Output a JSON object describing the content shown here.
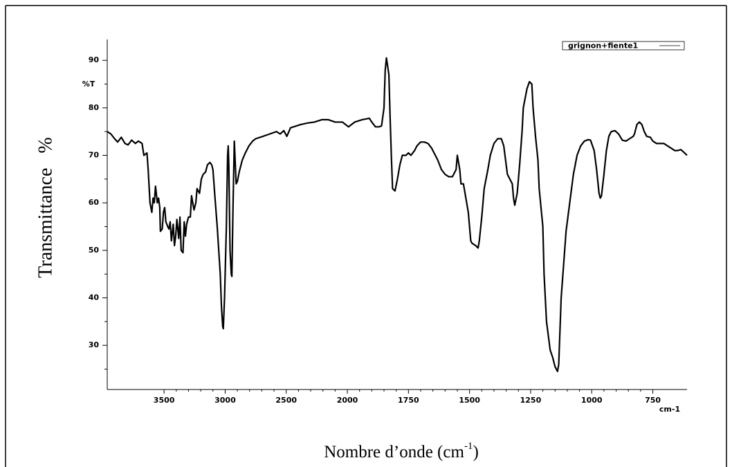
{
  "chart_data": {
    "type": "line",
    "y_label": "Transmittance   %",
    "x_label": "Nombre d’onde (cm",
    "x_label_superscript": "-1",
    "x_label_end": ")",
    "y_unit": "%T",
    "x_unit": "cm-1",
    "xlim": [
      3965,
      610
    ],
    "x_scale_change": {
      "at": 2000,
      "factor": 2
    },
    "xticks": [
      3500,
      3000,
      2500,
      2000,
      1750,
      1500,
      1250,
      1000,
      750
    ],
    "ylim": [
      20.7,
      94.4
    ],
    "yticks": [
      30,
      40,
      50,
      60,
      70,
      80,
      90
    ],
    "legend": "top-right",
    "grid": false,
    "series": [
      {
        "name": "grignon+fiente1",
        "color": "#000000",
        "x": [
          3965,
          3935,
          3905,
          3880,
          3850,
          3820,
          3795,
          3765,
          3735,
          3710,
          3680,
          3665,
          3640,
          3630,
          3615,
          3600,
          3590,
          3580,
          3570,
          3555,
          3545,
          3535,
          3530,
          3515,
          3505,
          3495,
          3485,
          3470,
          3460,
          3450,
          3440,
          3425,
          3415,
          3405,
          3395,
          3380,
          3370,
          3360,
          3345,
          3335,
          3325,
          3315,
          3300,
          3285,
          3275,
          3255,
          3240,
          3230,
          3210,
          3195,
          3180,
          3160,
          3145,
          3125,
          3110,
          3100,
          3080,
          3065,
          3040,
          3030,
          3020,
          3015,
          3005,
          2990,
          2980,
          2975,
          2970,
          2960,
          2950,
          2945,
          2935,
          2925,
          2910,
          2900,
          2885,
          2860,
          2835,
          2805,
          2775,
          2750,
          2690,
          2635,
          2580,
          2550,
          2520,
          2495,
          2465,
          2440,
          2380,
          2325,
          2270,
          2210,
          2155,
          2100,
          2040,
          1995,
          1970,
          1940,
          1910,
          1900,
          1885,
          1870,
          1860,
          1850,
          1845,
          1840,
          1830,
          1825,
          1820,
          1815,
          1805,
          1795,
          1785,
          1775,
          1760,
          1750,
          1740,
          1725,
          1715,
          1700,
          1685,
          1670,
          1655,
          1640,
          1630,
          1615,
          1600,
          1585,
          1570,
          1555,
          1550,
          1540,
          1535,
          1525,
          1515,
          1505,
          1495,
          1490,
          1475,
          1465,
          1460,
          1450,
          1440,
          1425,
          1415,
          1400,
          1385,
          1370,
          1360,
          1350,
          1345,
          1335,
          1325,
          1320,
          1315,
          1305,
          1295,
          1285,
          1280,
          1265,
          1255,
          1245,
          1240,
          1230,
          1220,
          1215,
          1200,
          1195,
          1185,
          1175,
          1170,
          1160,
          1155,
          1150,
          1140,
          1135,
          1130,
          1125,
          1115,
          1105,
          1090,
          1075,
          1060,
          1045,
          1030,
          1015,
          1005,
          990,
          980,
          970,
          965,
          960,
          950,
          940,
          930,
          920,
          905,
          890,
          875,
          860,
          845,
          830,
          825,
          815,
          805,
          795,
          785,
          775,
          760,
          750,
          735,
          720,
          705,
          690,
          675,
          660,
          650,
          635,
          620,
          610
        ],
        "values": [
          75,
          74.5,
          73.5,
          72.8,
          73.8,
          72.5,
          72.2,
          73.2,
          72.5,
          73,
          72.5,
          70,
          70.5,
          67,
          60,
          58,
          61,
          60,
          63.5,
          60,
          61,
          59,
          54,
          54.5,
          58,
          59,
          56,
          55,
          54.5,
          56,
          52,
          55.5,
          51,
          53,
          56.5,
          52.5,
          57,
          50,
          49.5,
          56,
          53,
          55.5,
          57,
          57,
          61.5,
          58.5,
          60,
          63,
          62,
          65,
          66,
          66.5,
          68,
          68.5,
          68,
          67,
          60,
          55,
          45,
          38,
          34,
          33.5,
          40,
          55,
          70,
          72,
          68,
          50,
          45,
          44.5,
          60,
          73,
          64,
          64.5,
          66.5,
          69,
          70.5,
          72,
          73,
          73.5,
          74,
          74.5,
          75,
          74.5,
          75.2,
          74,
          75.8,
          76,
          76.5,
          76.8,
          77,
          77.5,
          77.5,
          77,
          77,
          76,
          77,
          77.5,
          77.8,
          77,
          76,
          76,
          76.2,
          80,
          88,
          90.5,
          87,
          78,
          70,
          63,
          62.5,
          65,
          68,
          70,
          70,
          70.5,
          70,
          71,
          72,
          72.8,
          72.8,
          72.5,
          71.5,
          70,
          69,
          67,
          66,
          65.5,
          65.5,
          67,
          70,
          67,
          64,
          64,
          61,
          58,
          52,
          51.5,
          51,
          50.5,
          52,
          57,
          63,
          67,
          70,
          72.5,
          73.5,
          73.5,
          72,
          68,
          66,
          65,
          64,
          61,
          59.5,
          62,
          68,
          75,
          80,
          84,
          85.5,
          85,
          80,
          74,
          69,
          63,
          55,
          45,
          35,
          31,
          29,
          27.5,
          26.5,
          25.5,
          24.5,
          26,
          33,
          40,
          47,
          54,
          60,
          66,
          70,
          72,
          73,
          73.3,
          73.2,
          71,
          67,
          62,
          61,
          61.5,
          66,
          71,
          74,
          75,
          75.2,
          74.5,
          73.2,
          73,
          73.5,
          74,
          74.5,
          76.5,
          77,
          76.5,
          75,
          74,
          73.8,
          73,
          72.5,
          72.5,
          72.5,
          72,
          71.5,
          71,
          71,
          71.2,
          70.5,
          70
        ]
      }
    ]
  }
}
